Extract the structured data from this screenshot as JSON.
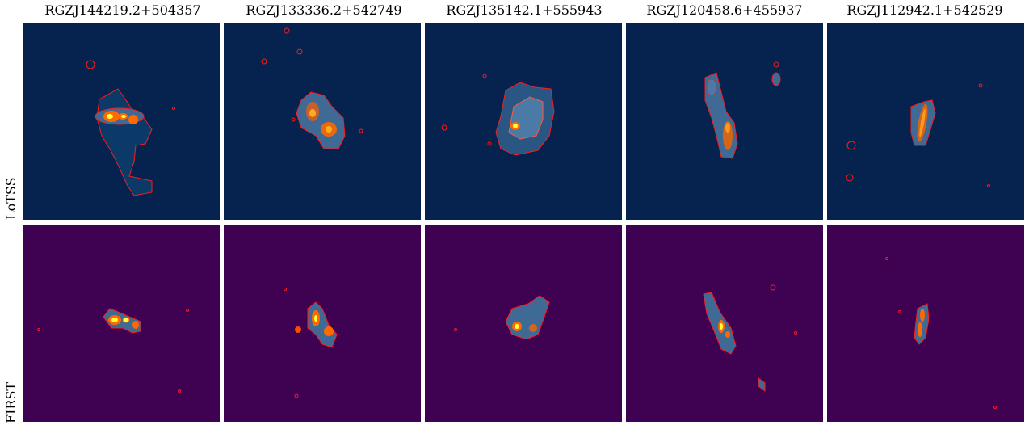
{
  "columns": [
    "RGZJ144219.2+504357",
    "RGZJ133336.2+542749",
    "RGZJ135142.1+555943",
    "RGZJ120458.6+455937",
    "RGZJ112942.1+542529"
  ],
  "rows": [
    "LoTSS",
    "FIRST"
  ],
  "colors": {
    "lotss_background": "#05234e",
    "first_background": "#3f0152",
    "contour": "#ff1a1a",
    "emission_mid": "#3e6a95",
    "emission_hot": "#ff6a00",
    "emission_core": "#ffff40"
  }
}
